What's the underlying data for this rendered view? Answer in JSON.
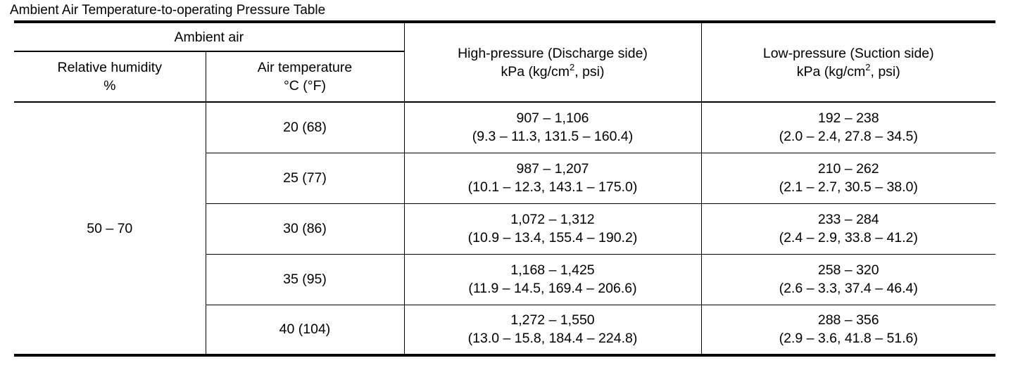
{
  "title": "Ambient Air Temperature-to-operating Pressure Table",
  "table": {
    "header": {
      "group": "Ambient air",
      "humidity": [
        "Relative humidity",
        "%"
      ],
      "temperature": [
        "Air temperature",
        "°C (°F)"
      ],
      "high_pressure": {
        "name": "High-pressure (Discharge side)",
        "unit": [
          "kPa (kg/cm",
          "2",
          ", psi)"
        ]
      },
      "low_pressure": {
        "name": "Low-pressure (Suction side)",
        "unit": [
          "kPa (kg/cm",
          "2",
          ", psi)"
        ]
      }
    },
    "humidity": "50 – 70",
    "rows": [
      {
        "temperature": "20 (68)",
        "high": [
          "907 – 1,106",
          "(9.3 – 11.3, 131.5 – 160.4)"
        ],
        "low": [
          "192 – 238",
          "(2.0 – 2.4, 27.8 – 34.5)"
        ]
      },
      {
        "temperature": "25 (77)",
        "high": [
          "987 – 1,207",
          "(10.1 – 12.3, 143.1 – 175.0)"
        ],
        "low": [
          "210 – 262",
          "(2.1 – 2.7, 30.5 – 38.0)"
        ]
      },
      {
        "temperature": "30 (86)",
        "high": [
          "1,072 – 1,312",
          "(10.9 – 13.4, 155.4 – 190.2)"
        ],
        "low": [
          "233 – 284",
          "(2.4 – 2.9, 33.8 – 41.2)"
        ]
      },
      {
        "temperature": "35 (95)",
        "high": [
          "1,168 – 1,425",
          "(11.9 – 14.5, 169.4 – 206.6)"
        ],
        "low": [
          "258 – 320",
          "(2.6 – 3.3, 37.4 – 46.4)"
        ]
      },
      {
        "temperature": "40 (104)",
        "high": [
          "1,272 – 1,550",
          "(13.0 – 15.8, 184.4 – 224.8)"
        ],
        "low": [
          "288 – 356",
          "(2.9 – 3.6, 41.8 – 51.6)"
        ]
      }
    ]
  }
}
